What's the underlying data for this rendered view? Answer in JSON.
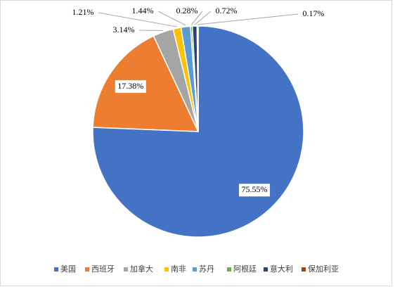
{
  "chart_data": {
    "type": "pie",
    "categories": [
      "美国",
      "西班牙",
      "加拿大",
      "南非",
      "苏丹",
      "阿根廷",
      "意大利",
      "保加利亚"
    ],
    "values": [
      75.55,
      17.38,
      3.14,
      1.21,
      1.44,
      0.28,
      0.72,
      0.17
    ],
    "value_labels": [
      "75.55%",
      "17.38%",
      "3.14%",
      "1.21%",
      "1.44%",
      "0.28%",
      "0.72%",
      "0.17%"
    ],
    "colors": [
      "#4472c4",
      "#ed7d31",
      "#a5a5a5",
      "#ffc000",
      "#5b9bd5",
      "#70ad47",
      "#264478",
      "#9e480e"
    ],
    "legend": "bottom"
  }
}
